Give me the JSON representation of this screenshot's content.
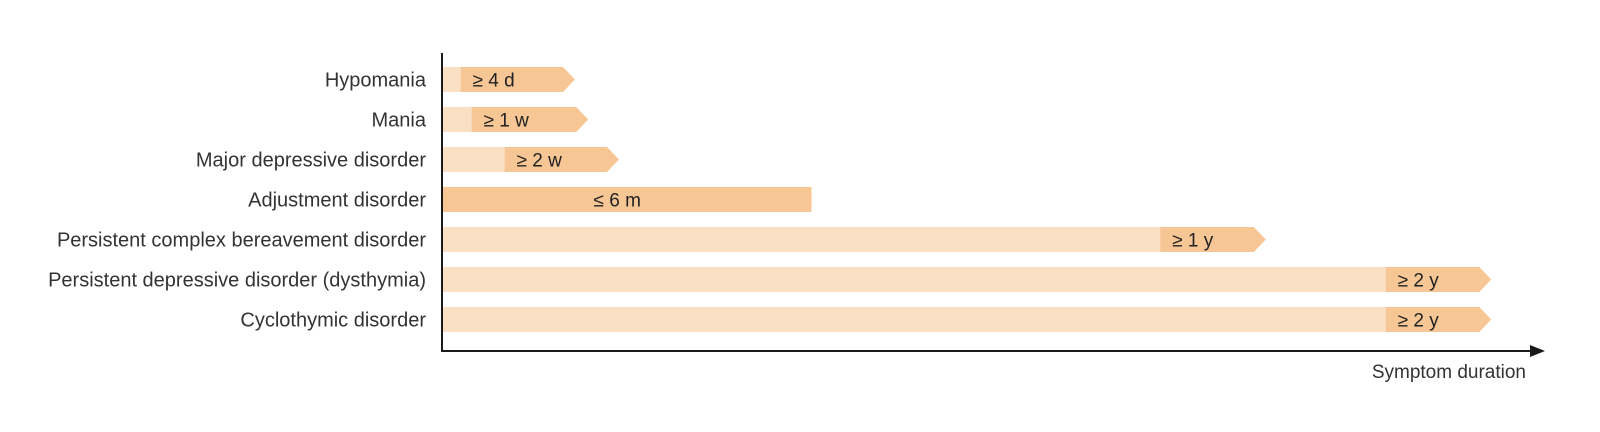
{
  "chart_data": {
    "type": "bar",
    "xlabel": "Symptom duration",
    "ylabel": "",
    "title": "",
    "grid": false,
    "legend": "none",
    "colors": {
      "light": "#f9e0c5",
      "dark": "#f6c695",
      "axis": "#1a1a1a"
    },
    "rows": [
      {
        "label": "Hypomania",
        "duration_label": "≥ 4 d",
        "kind": "minimum",
        "start": 0.016,
        "end": 0.12
      },
      {
        "label": "Mania",
        "duration_label": "≥ 1 w",
        "kind": "minimum",
        "start": 0.026,
        "end": 0.132
      },
      {
        "label": "Major depressive disorder",
        "duration_label": "≥ 2 w",
        "kind": "minimum",
        "start": 0.056,
        "end": 0.16
      },
      {
        "label": "Adjustment disorder",
        "duration_label": "≤ 6 m",
        "kind": "maximum",
        "start": 0,
        "end": 0.335
      },
      {
        "label": "Persistent complex bereavement disorder",
        "duration_label": "≥ 1 y",
        "kind": "minimum",
        "start": 0.652,
        "end": 0.748
      },
      {
        "label": "Persistent depressive disorder (dysthymia)",
        "duration_label": "≥ 2 y",
        "kind": "minimum",
        "start": 0.857,
        "end": 0.953
      },
      {
        "label": "Cyclothymic disorder",
        "duration_label": "≥ 2 y",
        "kind": "minimum",
        "start": 0.857,
        "end": 0.953
      }
    ]
  }
}
